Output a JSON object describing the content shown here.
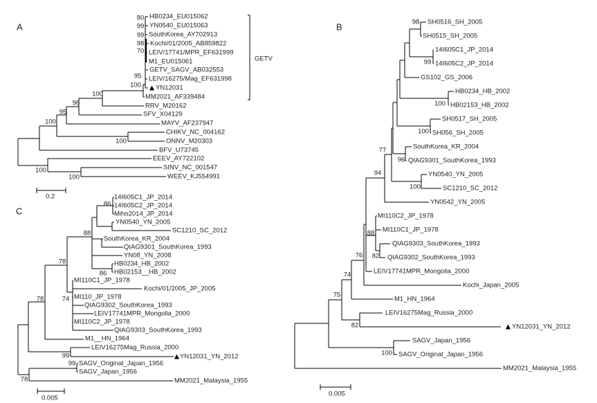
{
  "panels": {
    "A": {
      "label": "A",
      "leaves": [
        "HB0234_EU015062",
        "YN0540_EU015063",
        "SouthKorea_AY702913",
        "Kochi/01/2005_AB859822",
        "LEIV/17741/MPR_EF631999",
        "M1_EU015061",
        "GETV_SAGV_AB032553",
        "LEIV/16275/Mag_EF631998",
        "YN12031",
        "MM2021_AF339484",
        "RRV_M20162",
        "SFV_X04129",
        "MAYV_AF237947",
        "CHIKV_NC_004162",
        "ONNV_M20303",
        "BFV_U73745",
        "EEEV_AY722102",
        "SINV_NC_001547",
        "WEEV_KJ554991"
      ],
      "bootstrap": [
        "80",
        "99",
        "99",
        "98",
        "70",
        "95",
        "100",
        "100",
        "98",
        "95",
        "100",
        "100",
        "100",
        "100"
      ],
      "clade_label": "GETV",
      "scale": "0.2",
      "marked_leaf": "YN12031"
    },
    "B": {
      "label": "B",
      "leaves": [
        "SH0516_SH_2005",
        "SH0515_SH_2005",
        "14I605C1_JP_2014",
        "14I605C2_JP_2014",
        "GS102_GS_2006",
        "HB0234_HB_2002",
        "HB02153_HB_2002",
        "SH0517_SH_2005",
        "SH056_SH_2005",
        "SouthKorea_KR_2004",
        "QIAG9301_SouthKorea_1993",
        "YN0540_YN_2005",
        "SC1210_SC_2012",
        "YN0542_YN_2005",
        "MI110C2_JP_1978",
        "MI110C1_JP_1978",
        "QIAG9303_SouthKorea_1993",
        "QIAG9302_SouthKorea_1993",
        "LEIV17741MPR_Mongolia_2000",
        "Kochi_Japan_2005",
        "M1_HN_1964",
        "LEIV16275Mag_Russia_2000",
        "YN12031_YN_2012",
        "SAGV_Japan_1956",
        "SAGV_Original_Japan_1956",
        "MM2021_Malaysia_1955"
      ],
      "bootstrap": [
        "98",
        "99",
        "100",
        "100",
        "77",
        "96",
        "94",
        "100",
        "88",
        "82",
        "76",
        "74",
        "75",
        "82",
        "100"
      ],
      "scale": "0.005",
      "marked_leaf": "YN12031_YN_2012"
    },
    "C": {
      "label": "C",
      "leaves": [
        "14I605C1_JP_2014",
        "14I605C2_JP_2014",
        "Miho2014_JP_2014",
        "YN0540_YN_2005",
        "SC1210_SC_2012",
        "SouthKorea_KR_2004",
        "QIAG9301_SouthKorea_1993",
        "YN08_YN_2008",
        "HB0234_HB_2002",
        "HB02153__HB_2002",
        "MI110C1_JP_1978",
        "Kochi/01/2005_JP_2005",
        "MI110_JP_1978",
        "QIAG9302_SouthKorea_1993",
        "LEIV17741MPR_Mongolia_2000",
        "MI110C2_JP_1978",
        "QIAG9303_SouthKorea_1993",
        "M1__HN_1964",
        "LEIV16275Mag_Russia_2000",
        "YN12031_YN_2012",
        "SAGV_Original_Japan_1956",
        "SAGV_Japan_1956",
        "MM2021_Malaysia_1955"
      ],
      "bootstrap": [
        "86",
        "88",
        "86",
        "78",
        "74",
        "78",
        "99",
        "99",
        "78"
      ],
      "scale": "0.005",
      "marked_leaf": "YN12031_YN_2012"
    }
  },
  "marker_icon": "filled-triangle"
}
